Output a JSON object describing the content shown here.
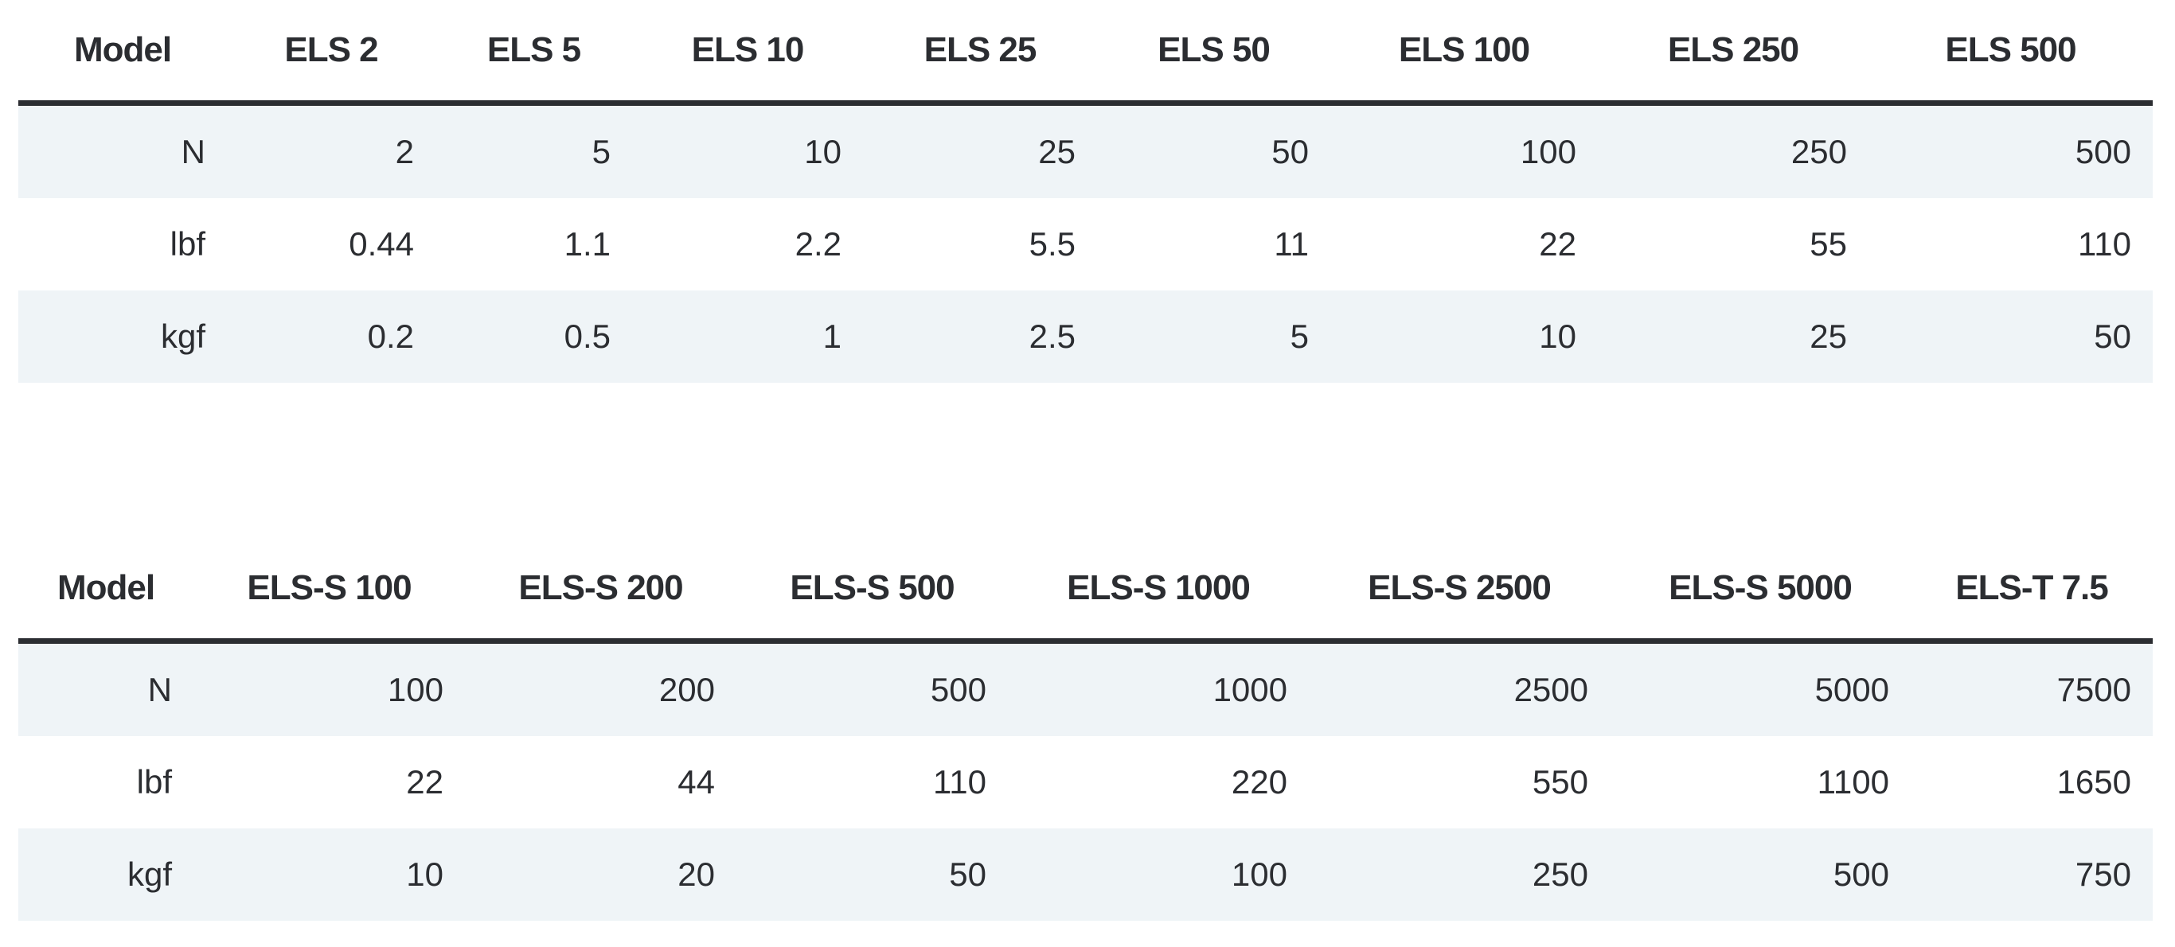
{
  "tables": [
    {
      "headers": [
        "Model",
        "ELS 2",
        "ELS 5",
        "ELS 10",
        "ELS 25",
        "ELS 50",
        "ELS 100",
        "ELS 250",
        "ELS 500"
      ],
      "rows": [
        [
          "N",
          "2",
          "5",
          "10",
          "25",
          "50",
          "100",
          "250",
          "500"
        ],
        [
          "lbf",
          "0.44",
          "1.1",
          "2.2",
          "5.5",
          "11",
          "22",
          "55",
          "110"
        ],
        [
          "kgf",
          "0.2",
          "0.5",
          "1",
          "2.5",
          "5",
          "10",
          "25",
          "50"
        ]
      ]
    },
    {
      "headers": [
        "Model",
        "ELS-S 100",
        "ELS-S 200",
        "ELS-S 500",
        "ELS-S 1000",
        "ELS-S 2500",
        "ELS-S 5000",
        "ELS-T 7.5"
      ],
      "rows": [
        [
          "N",
          "100",
          "200",
          "500",
          "1000",
          "2500",
          "5000",
          "7500"
        ],
        [
          "lbf",
          "22",
          "44",
          "110",
          "220",
          "550",
          "1100",
          "1650"
        ],
        [
          "kgf",
          "10",
          "20",
          "50",
          "100",
          "250",
          "500",
          "750"
        ]
      ]
    }
  ],
  "colors": {
    "text": "#2b2d31",
    "header_rule": "#2b2d31",
    "row_shade": "#eff4f7",
    "background": "#ffffff"
  }
}
